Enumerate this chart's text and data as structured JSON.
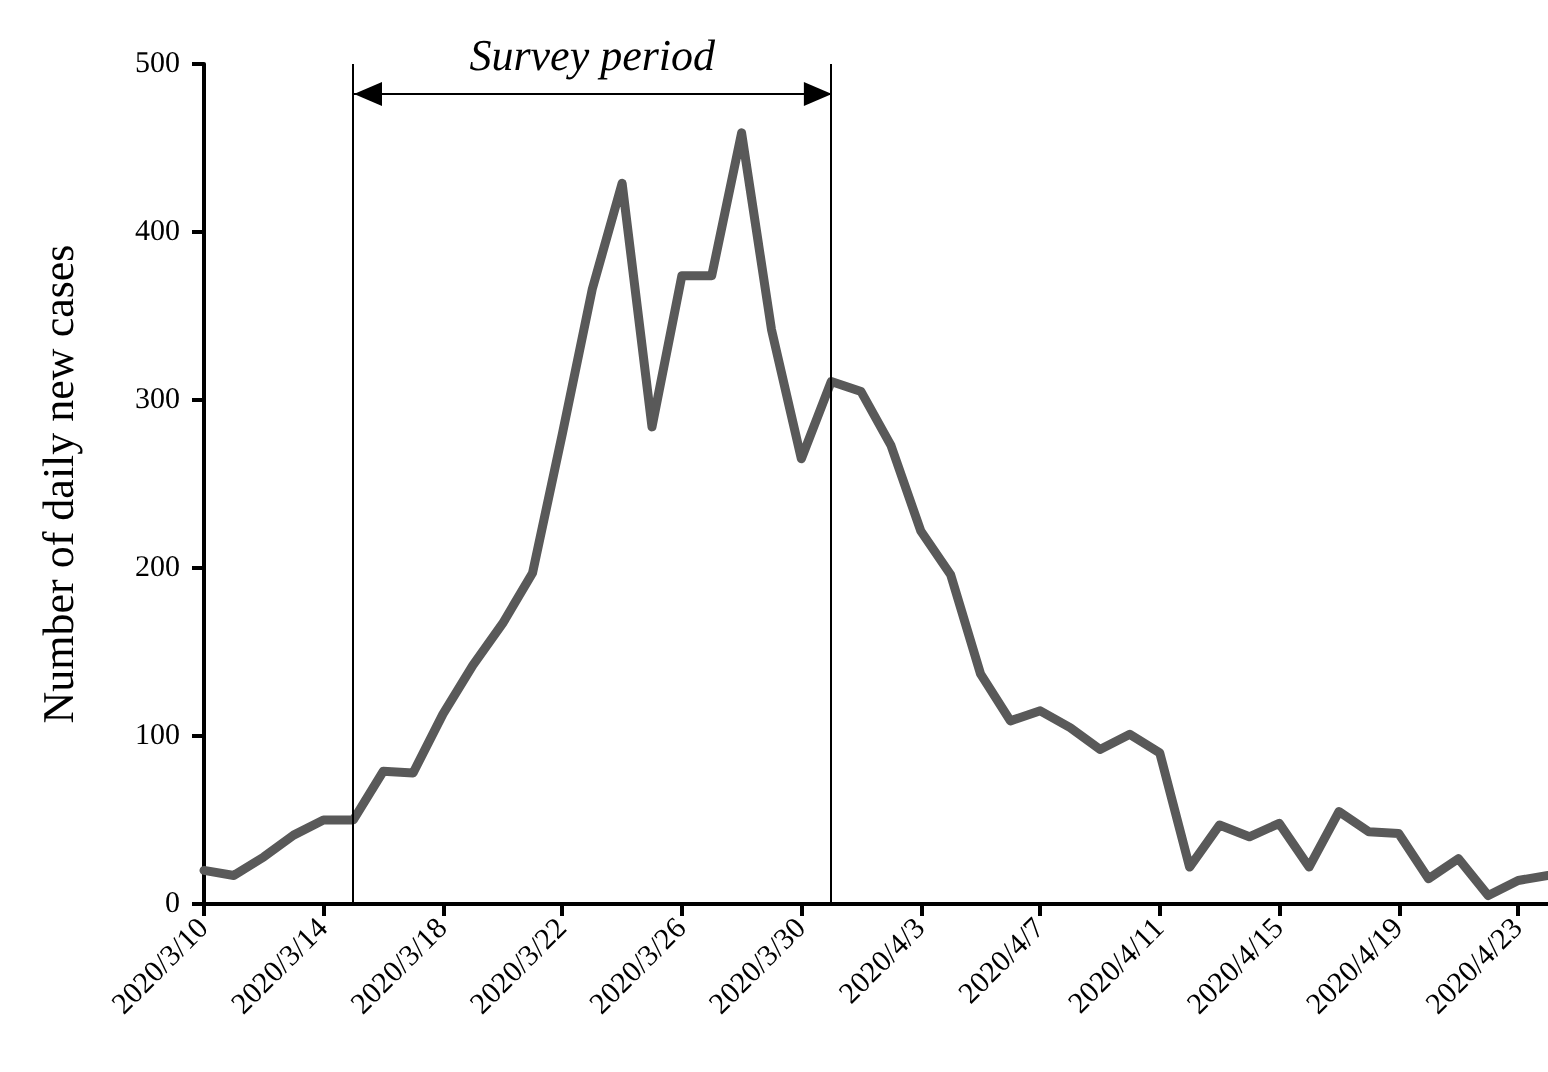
{
  "chart_data": {
    "type": "line",
    "ylabel": "Number of daily new cases",
    "annotations": [
      "Survey period"
    ],
    "x": [
      "2020-03-10",
      "2020-03-11",
      "2020-03-12",
      "2020-03-13",
      "2020-03-14",
      "2020-03-15",
      "2020-03-16",
      "2020-03-17",
      "2020-03-18",
      "2020-03-19",
      "2020-03-20",
      "2020-03-21",
      "2020-03-22",
      "2020-03-23",
      "2020-03-24",
      "2020-03-25",
      "2020-03-26",
      "2020-03-27",
      "2020-03-28",
      "2020-03-29",
      "2020-03-30",
      "2020-03-31",
      "2020-04-01",
      "2020-04-02",
      "2020-04-03",
      "2020-04-04",
      "2020-04-05",
      "2020-04-06",
      "2020-04-07",
      "2020-04-08",
      "2020-04-09",
      "2020-04-10",
      "2020-04-11",
      "2020-04-12",
      "2020-04-13",
      "2020-04-14",
      "2020-04-15",
      "2020-04-16",
      "2020-04-17",
      "2020-04-18",
      "2020-04-19",
      "2020-04-20",
      "2020-04-21",
      "2020-04-22",
      "2020-04-23",
      "2020-04-24"
    ],
    "series": [
      {
        "color": "#595959",
        "values": [
          20,
          17,
          28,
          41,
          50,
          50,
          79,
          78,
          113,
          142,
          167,
          197,
          280,
          366,
          429,
          284,
          374,
          374,
          459,
          342,
          265,
          311,
          305,
          273,
          222,
          196,
          137,
          109,
          115,
          105,
          92,
          101,
          90,
          22,
          47,
          40,
          48,
          22,
          55,
          43,
          42,
          15,
          27,
          5,
          14,
          17
        ]
      }
    ],
    "xlim": [
      "2020-03-10",
      "2020-04-24"
    ],
    "xticks": [
      {
        "value": "2020-03-10",
        "label": "2020/3/10"
      },
      {
        "value": "2020-03-14",
        "label": "2020/3/14"
      },
      {
        "value": "2020-03-18",
        "label": "2020/3/18"
      },
      {
        "value": "2020-03-22",
        "label": "2020/3/22"
      },
      {
        "value": "2020-03-26",
        "label": "2020/3/26"
      },
      {
        "value": "2020-03-30",
        "label": "2020/3/30"
      },
      {
        "value": "2020-04-03",
        "label": "2020/4/3"
      },
      {
        "value": "2020-04-07",
        "label": "2020/4/7"
      },
      {
        "value": "2020-04-11",
        "label": "2020/4/11"
      },
      {
        "value": "2020-04-15",
        "label": "2020/4/15"
      },
      {
        "value": "2020-04-19",
        "label": "2020/4/19"
      },
      {
        "value": "2020-04-23",
        "label": "2020/4/23"
      }
    ],
    "ylim": [
      0,
      500
    ],
    "yticks": [
      0,
      100,
      200,
      300,
      400,
      500
    ],
    "ref_lines": [
      {
        "axis": "x",
        "value": "2020-03-15",
        "color": "#000000"
      },
      {
        "axis": "x",
        "value": "2020-03-31",
        "color": "#000000"
      }
    ],
    "grid": false,
    "marker": "none",
    "line_style": "solid"
  }
}
